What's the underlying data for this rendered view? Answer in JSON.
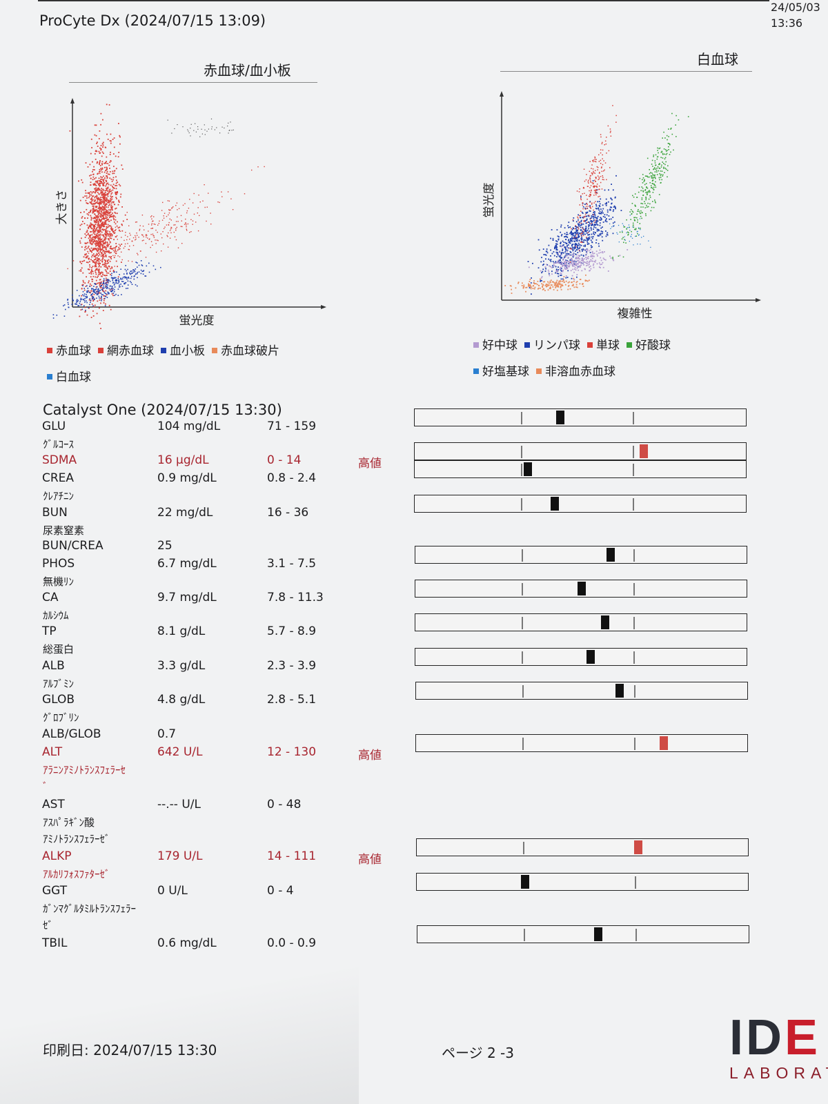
{
  "header": {
    "title": "ProCyte Dx (2024/07/15 13:09)",
    "stamp_date": "24/05/03",
    "stamp_time": "13:36"
  },
  "rbc_panel": {
    "title": "赤血球/血小板",
    "xlabel": "蛍光度",
    "ylabel": "大きさ",
    "legend": [
      {
        "label": "赤血球",
        "color": "#d9413a"
      },
      {
        "label": "網赤血球",
        "color": "#d9413a"
      },
      {
        "label": "血小板",
        "color": "#1f3fae"
      },
      {
        "label": "赤血球破片",
        "color": "#e88a5a"
      },
      {
        "label": "白血球",
        "color": "#2a7fd0"
      }
    ]
  },
  "wbc_panel": {
    "title": "白血球",
    "xlabel": "複雑性",
    "ylabel": "蛍光度",
    "legend": [
      {
        "label": "好中球",
        "color": "#b39ad0"
      },
      {
        "label": "リンパ球",
        "color": "#1f3fae"
      },
      {
        "label": "単球",
        "color": "#d9413a"
      },
      {
        "label": "好酸球",
        "color": "#3aa33a"
      },
      {
        "label": "好塩基球",
        "color": "#2a7fd0"
      },
      {
        "label": "非溶血赤血球",
        "color": "#e88a5a"
      }
    ]
  },
  "chemistry": {
    "title": "Catalyst One (2024/07/15 13:30)",
    "high_flag": "高値",
    "tests": [
      {
        "code": "GLU",
        "name_jp": [
          "ｸﾞﾙｺｰｽ"
        ],
        "result": "104 mg/dL",
        "range": "71 - 159",
        "flag": "",
        "level": 0.35,
        "bar": true
      },
      {
        "code": "SDMA",
        "name_jp": [],
        "result": "16 µg/dL",
        "range": "0 - 14",
        "flag": "高値",
        "level": 1.1,
        "bar": true
      },
      {
        "code": "CREA",
        "name_jp": [
          "ｸﾚｱﾁﾆﾝ"
        ],
        "result": "0.9 mg/dL",
        "range": "0.8 - 2.4",
        "flag": "",
        "level": 0.06,
        "bar": true
      },
      {
        "code": "BUN",
        "name_jp": [
          "尿素窒素"
        ],
        "result": "22 mg/dL",
        "range": "16 - 36",
        "flag": "",
        "level": 0.3,
        "bar": true
      },
      {
        "code": "BUN/CREA",
        "name_jp": [],
        "result": "25",
        "range": "",
        "flag": "",
        "level": null,
        "bar": false
      },
      {
        "code": "PHOS",
        "name_jp": [
          "無機ﾘﾝ"
        ],
        "result": "6.7 mg/dL",
        "range": "3.1 - 7.5",
        "flag": "",
        "level": 0.8,
        "bar": true
      },
      {
        "code": "CA",
        "name_jp": [
          "ｶﾙｼｳﾑ"
        ],
        "result": "9.7 mg/dL",
        "range": "7.8 - 11.3",
        "flag": "",
        "level": 0.54,
        "bar": true
      },
      {
        "code": "TP",
        "name_jp": [
          "総蛋白"
        ],
        "result": "8.1 g/dL",
        "range": "5.7 - 8.9",
        "flag": "",
        "level": 0.75,
        "bar": true
      },
      {
        "code": "ALB",
        "name_jp": [
          "ｱﾙﾌﾞﾐﾝ"
        ],
        "result": "3.3 g/dL",
        "range": "2.3 - 3.9",
        "flag": "",
        "level": 0.62,
        "bar": true
      },
      {
        "code": "GLOB",
        "name_jp": [
          "ｸﾞﾛﾌﾞﾘﾝ"
        ],
        "result": "4.8 g/dL",
        "range": "2.8 - 5.1",
        "flag": "",
        "level": 0.87,
        "bar": true
      },
      {
        "code": "ALB/GLOB",
        "name_jp": [],
        "result": "0.7",
        "range": "",
        "flag": "",
        "level": null,
        "bar": false
      },
      {
        "code": "ALT",
        "name_jp": [
          "ｱﾗﾆﾝｱﾐﾉﾄﾗﾝｽﾌｪﾗｰｾ",
          "ﾞ"
        ],
        "result": "642 U/L",
        "range": "12 - 130",
        "flag": "高値",
        "level": 1.27,
        "bar": true
      },
      {
        "code": "AST",
        "name_jp": [
          "ｱｽﾊﾟﾗｷﾞﾝ酸",
          "ｱﾐﾉﾄﾗﾝｽﾌｪﾗｰｾﾞ"
        ],
        "result": "--.-- U/L",
        "range": "0 - 48",
        "flag": "",
        "level": null,
        "bar": false
      },
      {
        "code": "ALKP",
        "name_jp": [
          "ｱﾙｶﾘﾌｫｽﾌｧﾀｰｾﾞ"
        ],
        "result": "179 U/L",
        "range": "14 - 111",
        "flag": "高値",
        "level": 1.03,
        "bar": true
      },
      {
        "code": "GGT",
        "name_jp": [
          "ｶﾞﾝﾏｸﾞﾙﾀﾐﾙﾄﾗﾝｽﾌｪﾗｰ",
          "ｾﾞ"
        ],
        "result": "0 U/L",
        "range": "0 - 4",
        "flag": "",
        "level": 0.02,
        "bar": true
      },
      {
        "code": "TBIL",
        "name_jp": [],
        "result": "0.6 mg/dL",
        "range": "0.0 - 0.9",
        "flag": "",
        "level": 0.67,
        "bar": true
      }
    ]
  },
  "footer": {
    "print_date": "印刷日: 2024/07/15 13:30",
    "page": "ページ 2 -3"
  },
  "logo": {
    "mark_a": "ID",
    "mark_b": "E",
    "text": "LABORAT"
  }
}
